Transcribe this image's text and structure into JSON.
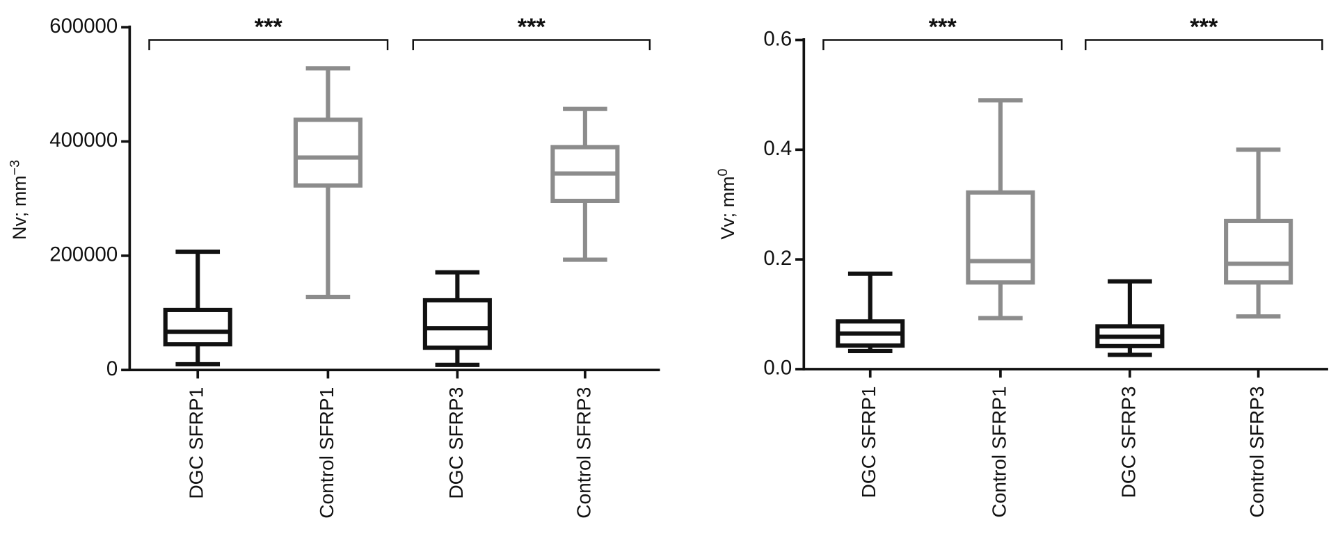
{
  "chart_data": [
    {
      "type": "box",
      "ylabel": "Nv; mm",
      "ylabel_sup": "−3",
      "categories": [
        "DGC SFRP1",
        "Control SFRP1",
        "DGC SFRP3",
        "Control SFRP3"
      ],
      "colors": [
        "#111111",
        "#8c8c8c",
        "#111111",
        "#8c8c8c"
      ],
      "min": [
        10000,
        128000,
        9000,
        193000
      ],
      "q1": [
        45000,
        323000,
        39000,
        296000
      ],
      "median": [
        67000,
        372000,
        73000,
        344000
      ],
      "q3": [
        105000,
        438000,
        122000,
        390000
      ],
      "max": [
        207000,
        528000,
        171000,
        457000
      ],
      "ylim": [
        0,
        600000
      ],
      "yticks": [
        0,
        200000,
        400000,
        600000
      ],
      "annotations": [
        "***",
        "***"
      ]
    },
    {
      "type": "box",
      "ylabel": "Vv; mm",
      "ylabel_sup": "0",
      "categories": [
        "DGC SFRP1",
        "Control SFRP1",
        "DGC SFRP3",
        "Control SFRP3"
      ],
      "colors": [
        "#111111",
        "#8c8c8c",
        "#111111",
        "#8c8c8c"
      ],
      "min": [
        0.033,
        0.093,
        0.026,
        0.096
      ],
      "q1": [
        0.043,
        0.158,
        0.042,
        0.158
      ],
      "median": [
        0.065,
        0.197,
        0.059,
        0.192
      ],
      "q3": [
        0.087,
        0.322,
        0.078,
        0.27
      ],
      "max": [
        0.174,
        0.49,
        0.16,
        0.4
      ],
      "ylim": [
        0,
        0.6
      ],
      "yticks": [
        {
          "value": 0,
          "label": "0.0"
        },
        0.2,
        0.4,
        0.6
      ],
      "annotations": [
        "***",
        "***"
      ]
    }
  ]
}
